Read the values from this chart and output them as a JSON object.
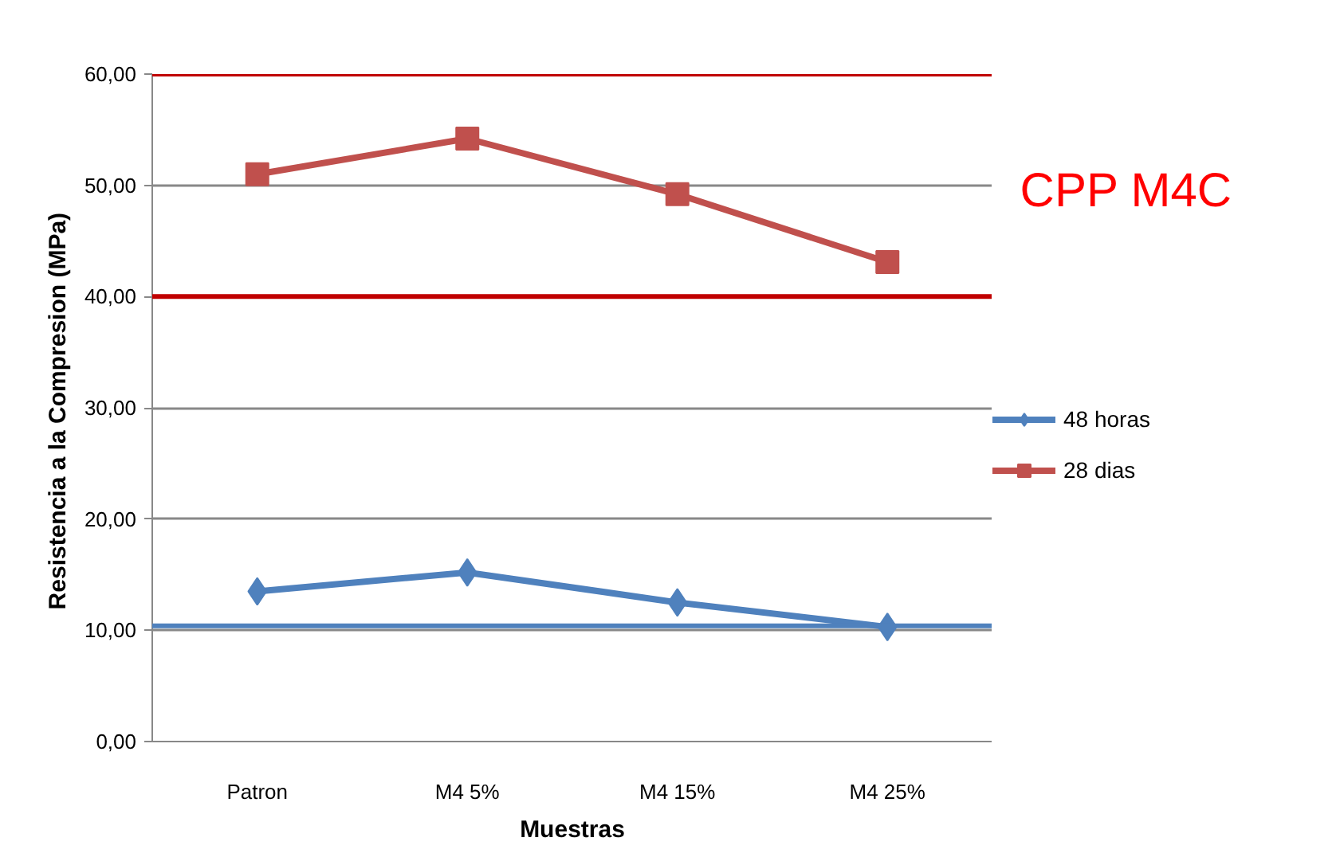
{
  "chart_data": {
    "type": "line",
    "xlabel": "Muestras",
    "ylabel": "Resistencia  a la Compresion (MPa)",
    "categories": [
      "Patron",
      "M4 5%",
      "M4 15%",
      "M4 25%"
    ],
    "series": [
      {
        "name": "48 horas",
        "color": "#4f81bd",
        "marker": "diamond",
        "values": [
          13.5,
          15.2,
          12.5,
          10.3
        ]
      },
      {
        "name": "28 dias",
        "color": "#c0504d",
        "marker": "square",
        "values": [
          51.0,
          54.2,
          49.2,
          43.1
        ]
      }
    ],
    "ylim": [
      0,
      60
    ],
    "yticks": [
      {
        "value": 0,
        "label": "0,00"
      },
      {
        "value": 10,
        "label": "10,00"
      },
      {
        "value": 20,
        "label": "20,00"
      },
      {
        "value": 30,
        "label": "30,00"
      },
      {
        "value": 40,
        "label": "40,00"
      },
      {
        "value": 50,
        "label": "50,00"
      },
      {
        "value": 60,
        "label": "60,00"
      }
    ],
    "ref_lines": [
      {
        "axis": "y",
        "value": 60,
        "color": "#c00000"
      },
      {
        "axis": "y",
        "value": 40,
        "color": "#c00000"
      },
      {
        "axis": "y",
        "value": 10.4,
        "color": "#4f81bd"
      }
    ],
    "annotations": [
      "CPP M4C"
    ],
    "grid": "y",
    "legend": "right",
    "line_style": "solid"
  }
}
